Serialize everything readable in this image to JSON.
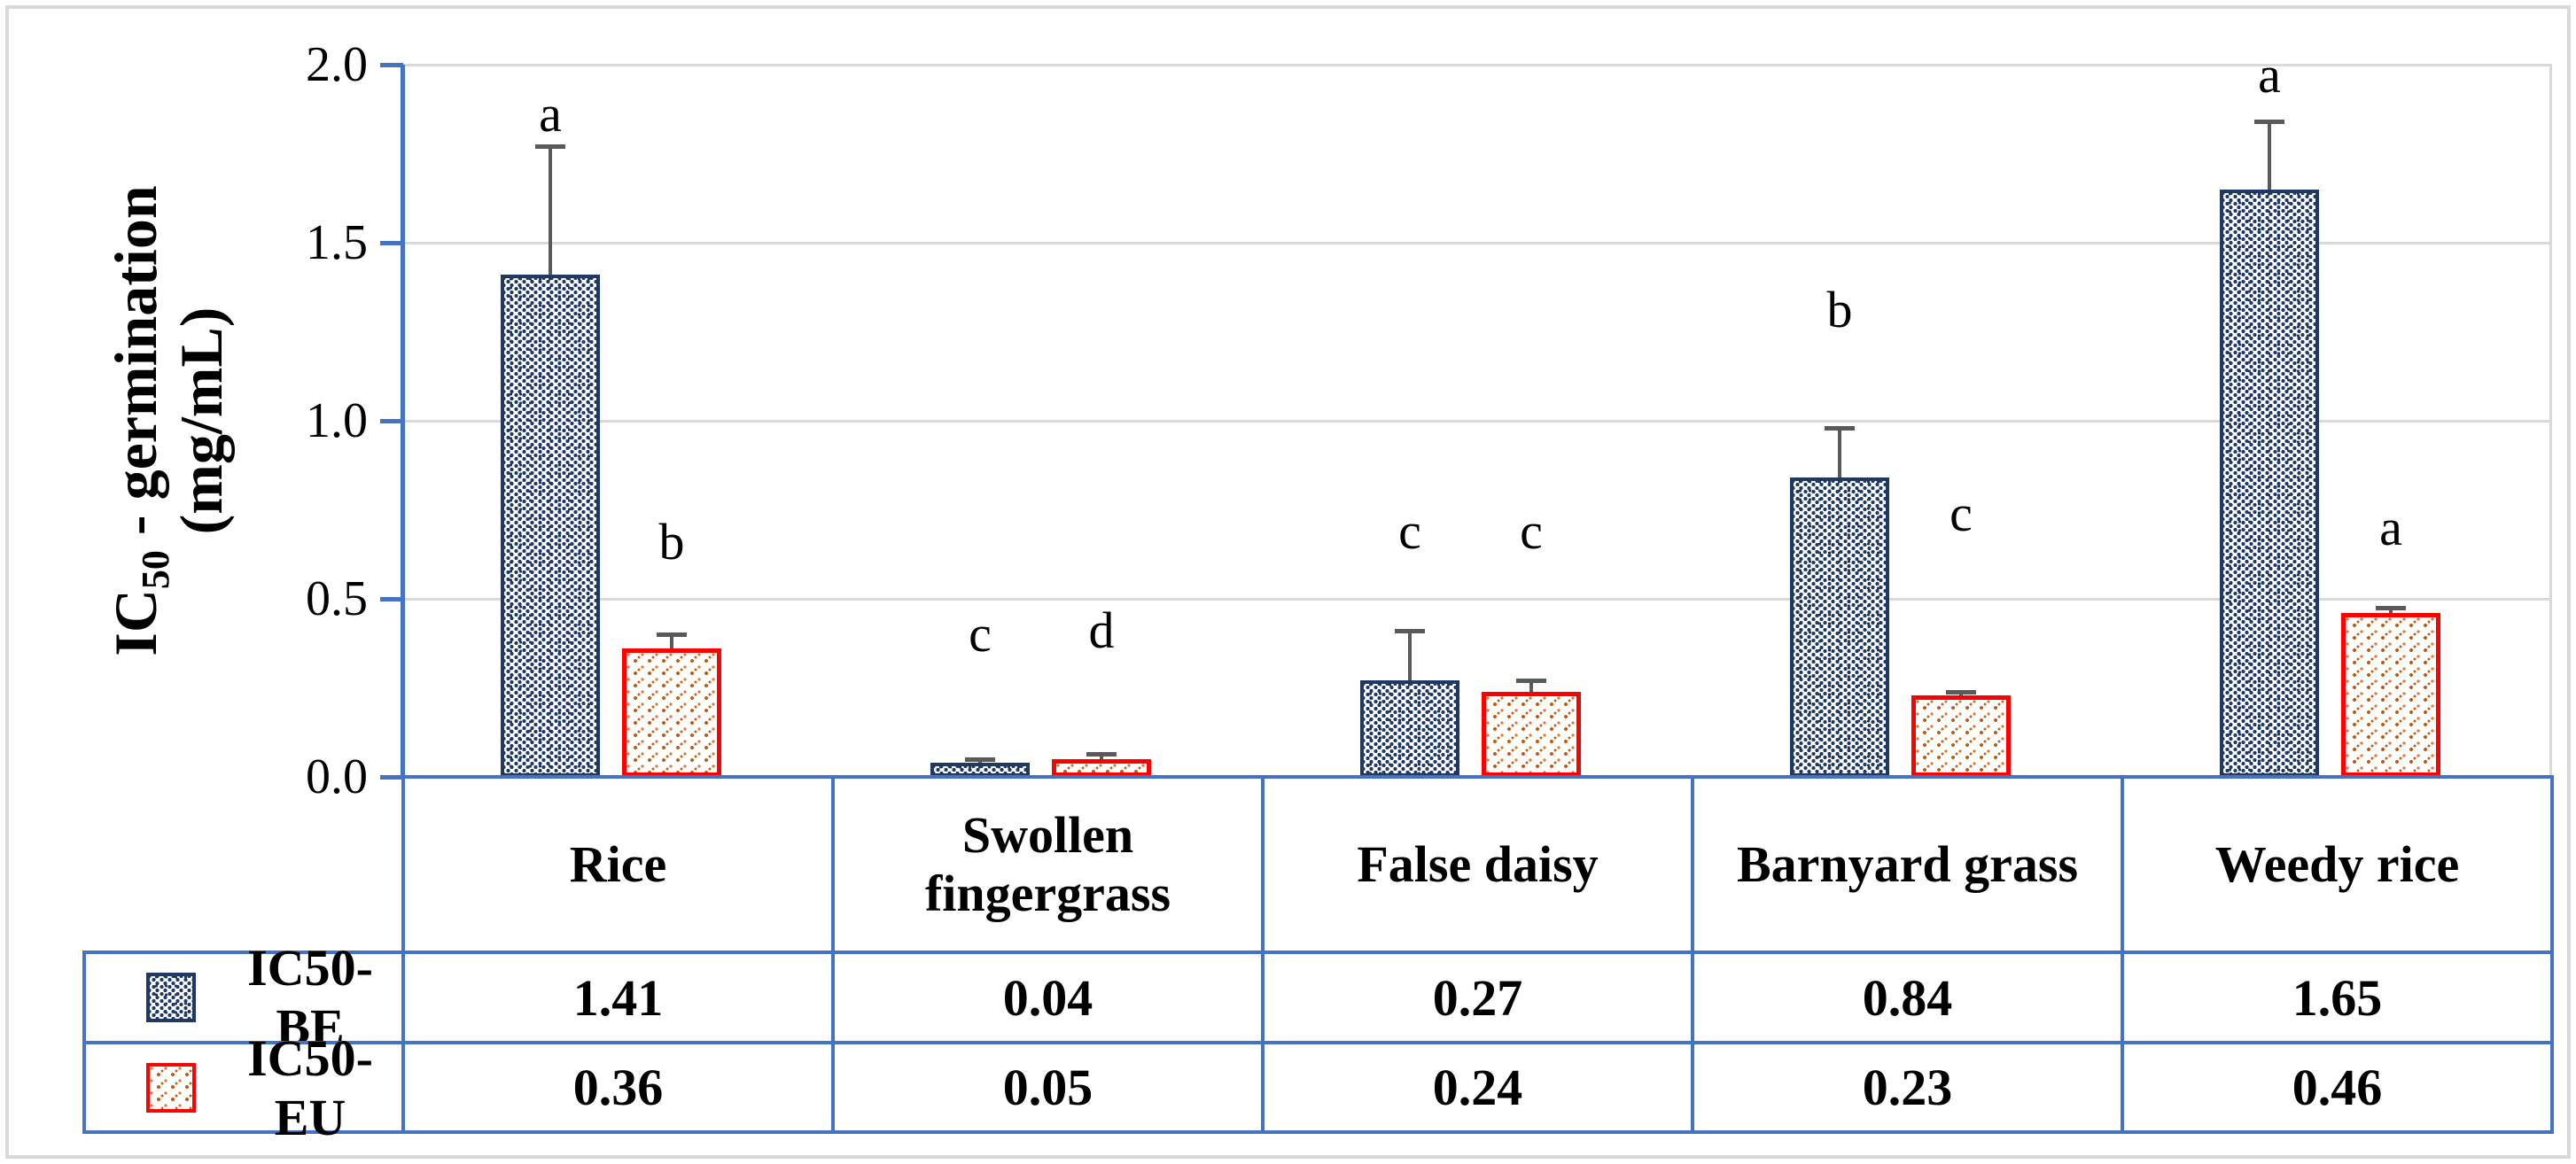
{
  "figure": {
    "y_axis": {
      "title_main": "IC",
      "title_sub": "50",
      "title_rest": " - germination",
      "title_line2": "(mg/mL)",
      "ticks": [
        "2.0",
        "1.5",
        "1.0",
        "0.5",
        "0.0"
      ]
    },
    "legend": [
      {
        "label": "IC50-BE",
        "swatch": "navy-dotted-pattern-swatch"
      },
      {
        "label": "IC50-EU",
        "swatch": "red-orange-speckled-pattern-swatch"
      }
    ],
    "colors": {
      "be_bar_border": "#1F3864",
      "be_bar_dots": "#203864",
      "eu_bar_border": "#FF0000",
      "eu_bar_dots": "#C55A11",
      "axis_and_table_lines": "#4472C4",
      "gridlines": "#D9D9D9",
      "error_bars": "#595959",
      "text": "#000000",
      "background": "#FFFFFF"
    }
  },
  "chart_data": {
    "type": "bar",
    "title": "",
    "xlabel": "",
    "ylabel": "IC50 - germination (mg/mL)",
    "ylim": [
      0.0,
      2.0
    ],
    "ytick_step": 0.5,
    "grid": "horizontal-light-gray",
    "legend_position": "table-left-rows",
    "categories": [
      "Rice",
      "Swollen fingergrass",
      "False daisy",
      "Barnyard grass",
      "Weedy rice"
    ],
    "series": [
      {
        "name": "IC50-BE",
        "values": [
          1.41,
          0.04,
          0.27,
          0.84,
          1.65
        ],
        "error_top": [
          1.77,
          0.05,
          0.41,
          0.98,
          1.84
        ],
        "letters": [
          "a",
          "c",
          "c",
          "b",
          "a"
        ],
        "letter_y": [
          1.86,
          0.4,
          0.69,
          1.31,
          1.97
        ]
      },
      {
        "name": "IC50-EU",
        "values": [
          0.36,
          0.05,
          0.24,
          0.23,
          0.46
        ],
        "error_top": [
          0.4,
          0.065,
          0.27,
          0.24,
          0.475
        ],
        "letters": [
          "b",
          "d",
          "c",
          "c",
          "a"
        ],
        "letter_y": [
          0.66,
          0.41,
          0.69,
          0.74,
          0.7
        ]
      }
    ],
    "table_rows": [
      {
        "label": "IC50-BE",
        "values": [
          "1.41",
          "0.04",
          "0.27",
          "0.84",
          "1.65"
        ]
      },
      {
        "label": "IC50-EU",
        "values": [
          "0.36",
          "0.05",
          "0.24",
          "0.23",
          "0.46"
        ]
      }
    ],
    "annotation_note": "letters a-d are significance group labels shown above bars"
  }
}
